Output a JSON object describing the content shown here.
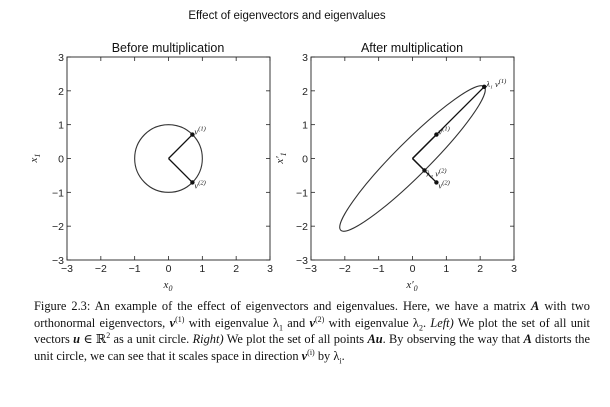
{
  "figure_title": "Effect of eigenvectors and eigenvalues",
  "panels": [
    {
      "title": "Before multiplication",
      "xlabel": "x",
      "xlabel_sub": "0",
      "ylabel": "x",
      "ylabel_sub": "1",
      "xticks": [
        "−3",
        "−2",
        "−1",
        "0",
        "1",
        "2",
        "3"
      ],
      "yticks": [
        "−3",
        "−2",
        "−1",
        "0",
        "1",
        "2",
        "3"
      ],
      "shape": {
        "kind": "unit-circle",
        "center": [
          0,
          0
        ],
        "radius": 1
      },
      "vectors": [
        {
          "label": "v",
          "sup": "(1)",
          "end": [
            0.707,
            0.707
          ]
        },
        {
          "label": "v",
          "sup": "(2)",
          "end": [
            0.707,
            -0.707
          ]
        }
      ]
    },
    {
      "title": "After multiplication",
      "xlabel": "x′",
      "xlabel_sub": "0",
      "ylabel": "x′",
      "ylabel_sub": "1",
      "xticks": [
        "−3",
        "−2",
        "−1",
        "0",
        "1",
        "2",
        "3"
      ],
      "yticks": [
        "−3",
        "−2",
        "−1",
        "0",
        "1",
        "2",
        "3"
      ],
      "shape": {
        "kind": "ellipse",
        "center": [
          0,
          0
        ],
        "semi_major": 3,
        "semi_minor": 0.5,
        "angle_deg": 45
      },
      "vectors": [
        {
          "label": "λ₁ v",
          "sup": "(1)",
          "end": [
            2.12,
            2.12
          ]
        },
        {
          "label": "v",
          "sup": "(1)",
          "end": [
            0.707,
            0.707
          ]
        },
        {
          "label": "λ₂ v",
          "sup": "(2)",
          "end": [
            0.354,
            -0.354
          ]
        },
        {
          "label": "v",
          "sup": "(2)",
          "end": [
            0.707,
            -0.707
          ]
        }
      ]
    }
  ],
  "axis_range": [
    -3,
    3
  ],
  "caption": {
    "figure_label": "Figure 2.3:",
    "text_1": " An example of the effect of eigenvectors and eigenvalues. Here, we have a matrix ",
    "A": "A",
    "text_2": " with two orthonormal eigenvectors, ",
    "v1": "v",
    "v1_sup": "(1)",
    "text_3": " with eigenvalue λ",
    "l1_sub": "1",
    "text_4": " and ",
    "v2": "v",
    "v2_sup": "(2)",
    "text_5": " with eigenvalue λ",
    "l2_sub": "2",
    "text_6": ". ",
    "left_label": "Left)",
    "text_7": " We plot the set of all unit vectors ",
    "u": "u",
    "text_8": " ∈ ℝ",
    "r_sup": "2",
    "text_9": " as a unit circle. ",
    "right_label": "Right)",
    "text_10": " We plot the set of all points ",
    "Au": "Au",
    "text_11": ". By observing the way that ",
    "A2": "A",
    "text_12": " distorts the unit circle, we can see that it scales space in direction ",
    "vi": "v",
    "vi_sup": "(i)",
    "text_13": " by λ",
    "li_sub": "i",
    "text_14": "."
  }
}
